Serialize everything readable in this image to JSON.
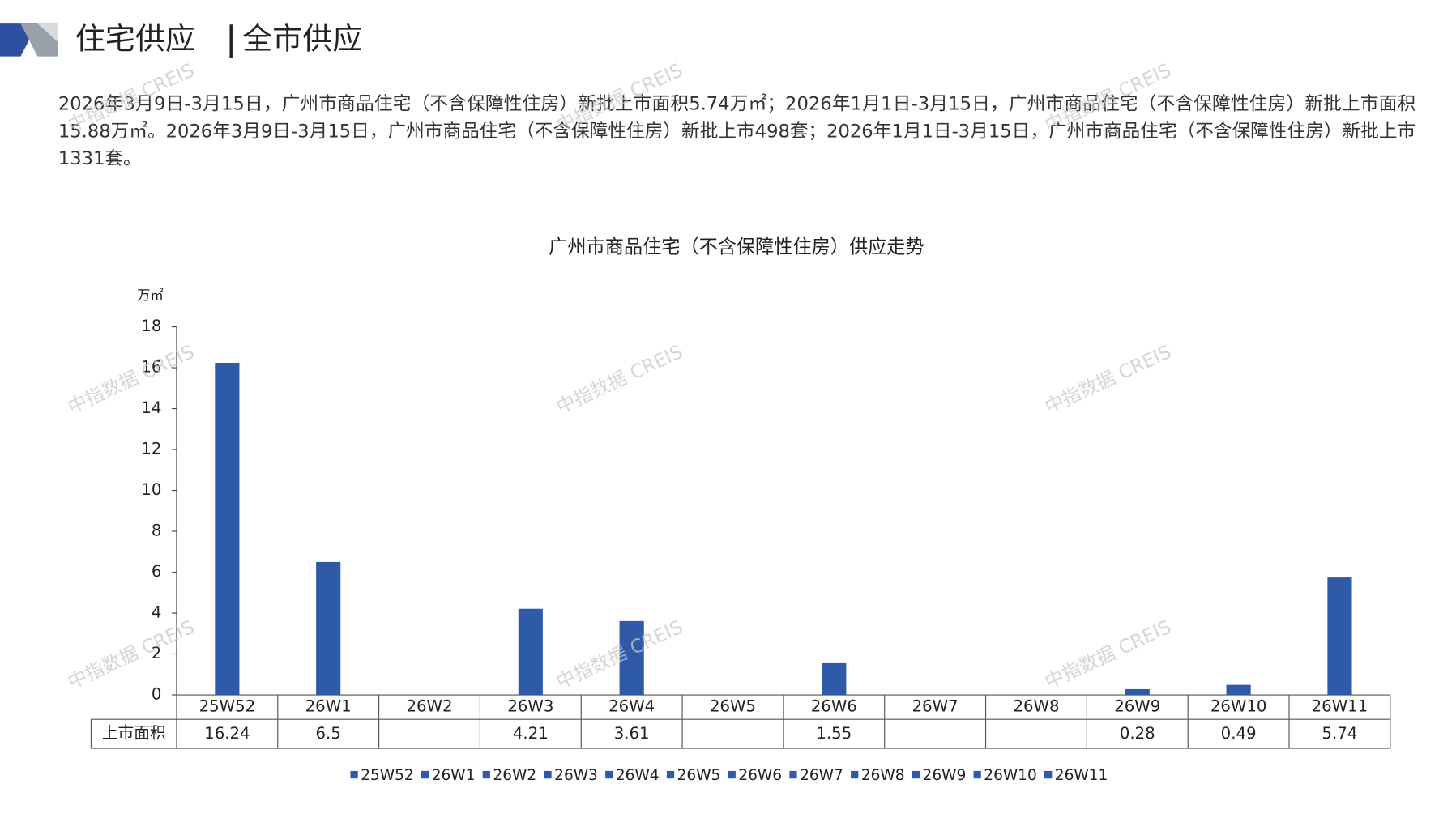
{
  "header": {
    "title_main": "住宅供应",
    "title_sub": "全市供应"
  },
  "summary": "2026年3月9日-3月15日，广州市商品住宅（不含保障性住房）新批上市面积5.74万㎡；2026年1月1日-3月15日，广州市商品住宅（不含保障性住房）新批上市面积15.88万㎡。2026年3月9日-3月15日，广州市商品住宅（不含保障性住房）新批上市498套；2026年1月1日-3月15日，广州市商品住宅（不含保障性住房）新批上市1331套。",
  "watermark": "中指数据 CREIS",
  "chart_data": {
    "type": "bar",
    "title": "广州市商品住宅（不含保障性住房）供应走势",
    "y_label": "万㎡",
    "categories": [
      "25W52",
      "26W1",
      "26W2",
      "26W3",
      "26W4",
      "26W5",
      "26W6",
      "26W7",
      "26W8",
      "26W9",
      "26W10",
      "26W11"
    ],
    "series": [
      {
        "name": "上市面积",
        "color": "#2f5aa8",
        "values": [
          16.24,
          6.5,
          null,
          4.21,
          3.61,
          null,
          1.55,
          null,
          null,
          0.28,
          0.49,
          5.74
        ]
      }
    ],
    "ylim": [
      0,
      18
    ],
    "yticks": [
      0,
      2,
      4,
      6,
      8,
      10,
      12,
      14,
      16,
      18
    ],
    "data_table": true,
    "legend": "bottom"
  }
}
